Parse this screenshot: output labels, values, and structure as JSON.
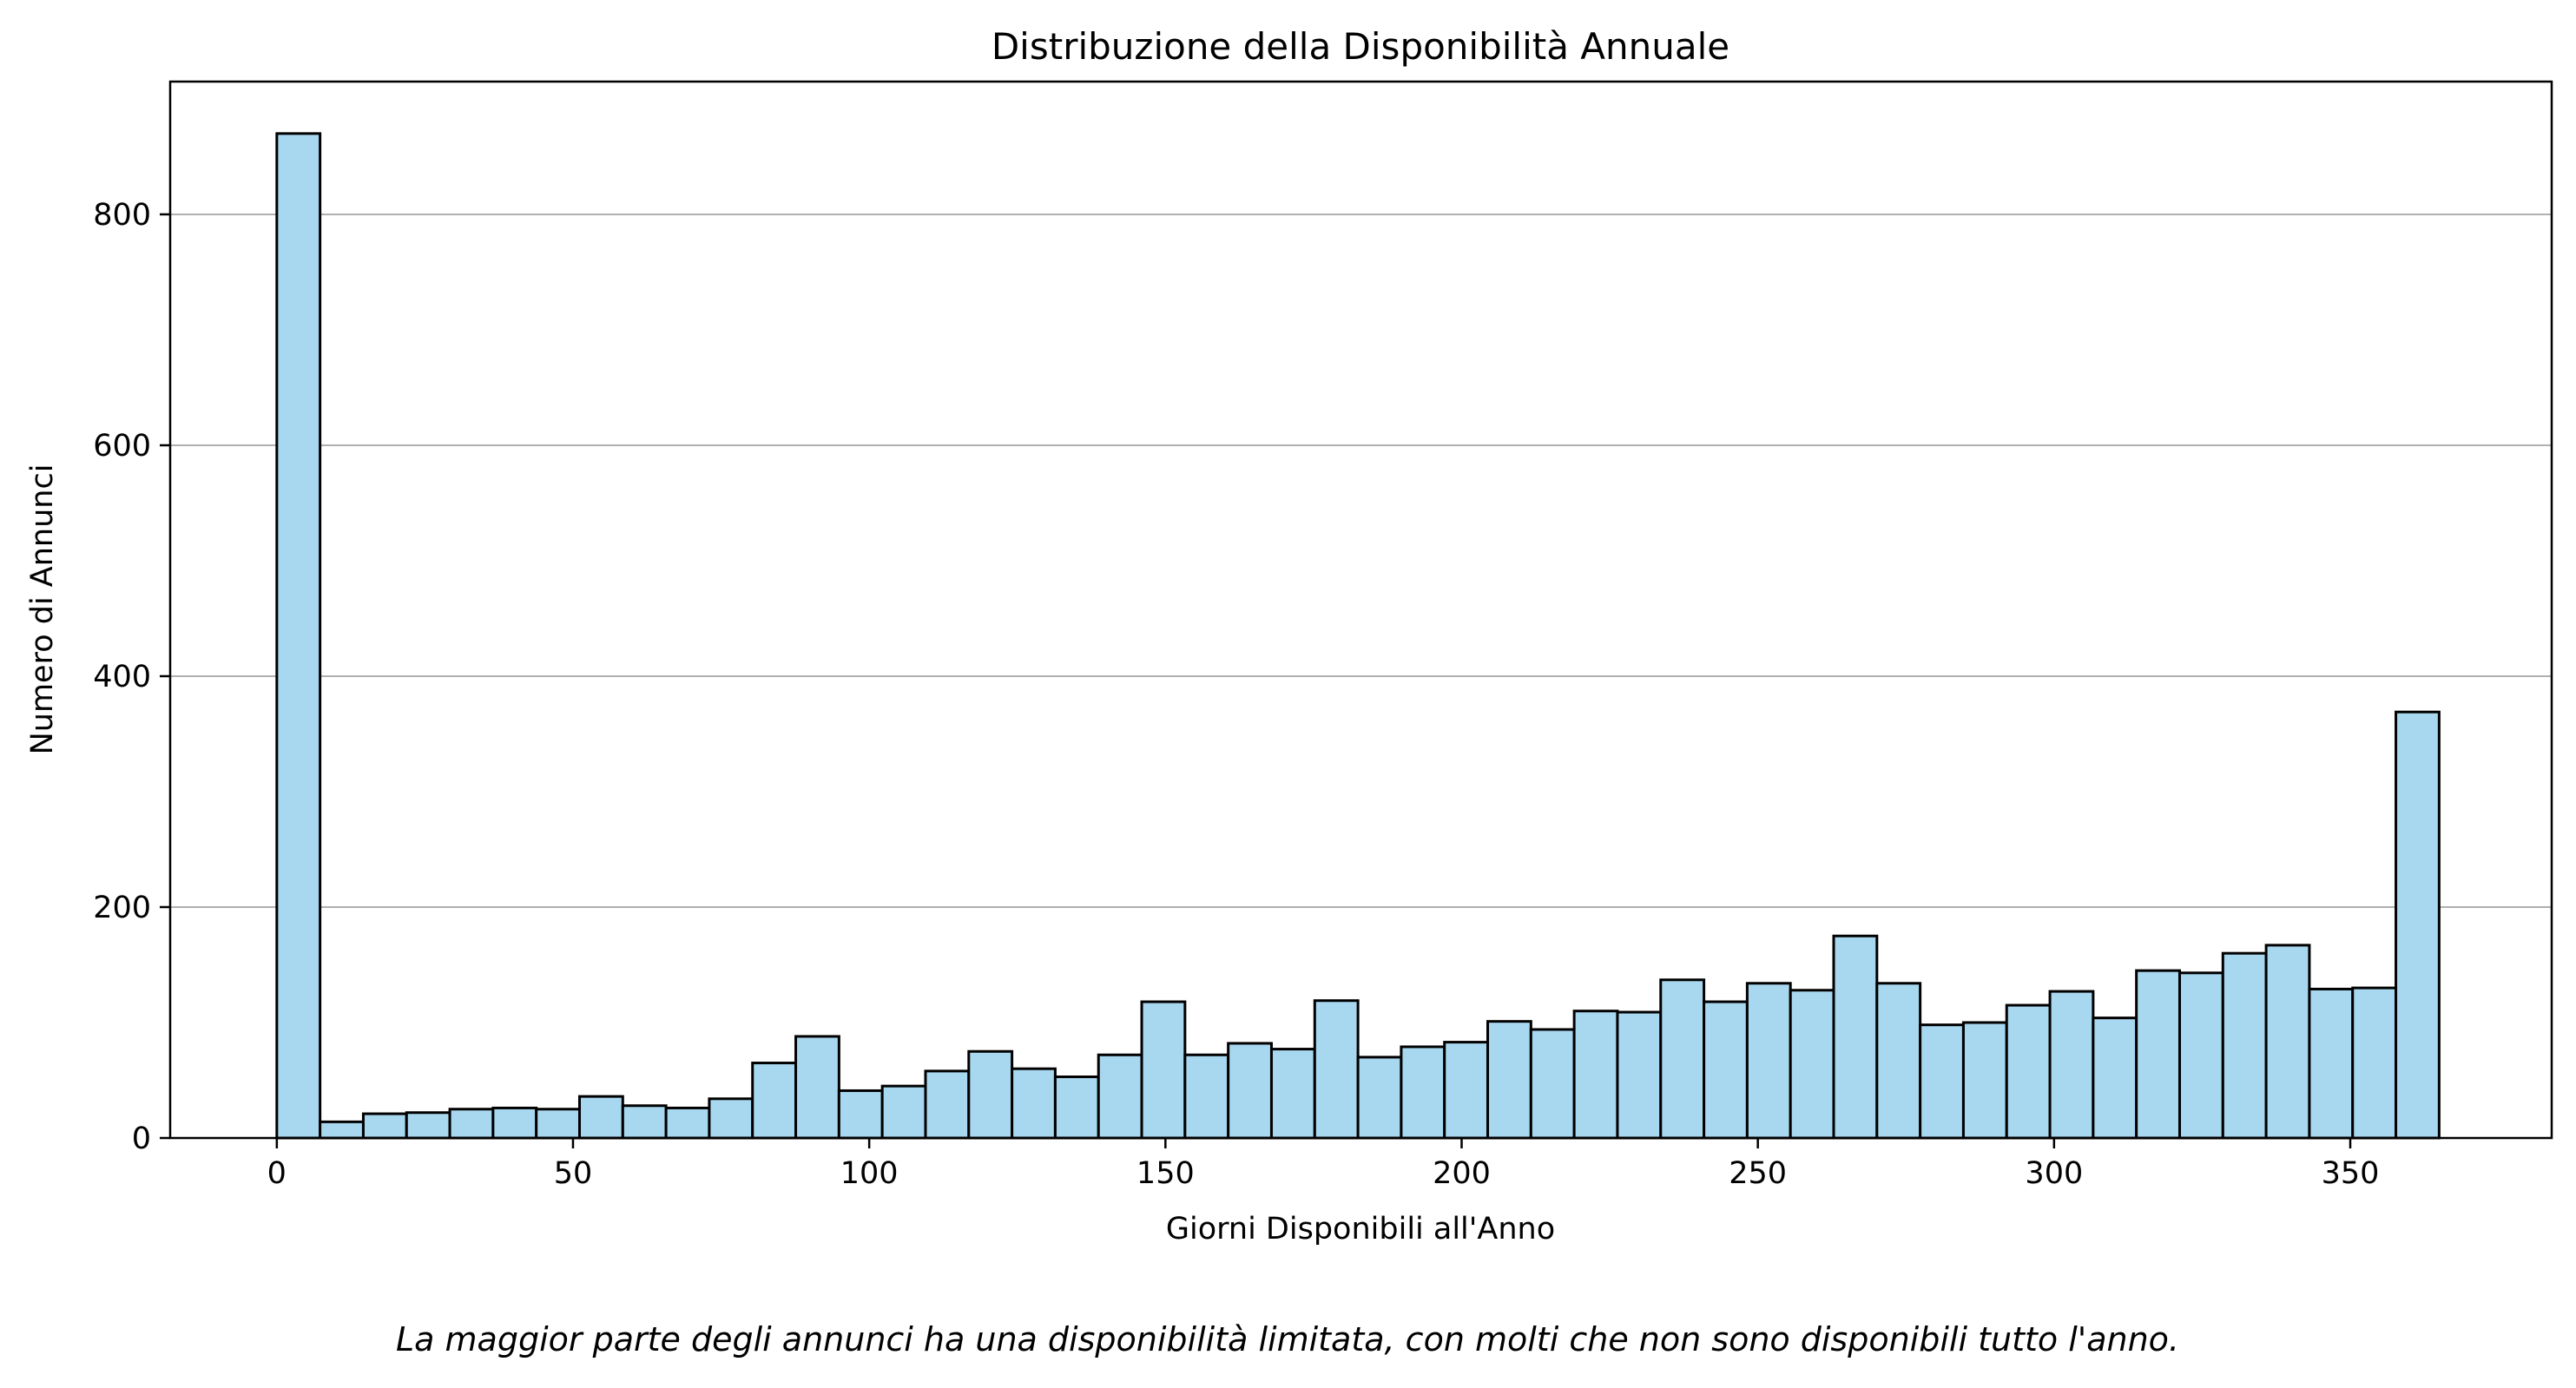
{
  "chart_data": {
    "type": "bar",
    "title": "Distribuzione della Disponibilità Annuale",
    "xlabel": "Giorni Disponibili all'Anno",
    "ylabel": "Numero di Annunci",
    "caption": "La maggior parte degli annunci ha una disponibilità limitata, con molti che non sono disponibili tutto l'anno.",
    "xlim": [
      -18,
      384
    ],
    "ylim": [
      0,
      915
    ],
    "x_ticks": [
      0,
      50,
      100,
      150,
      200,
      250,
      300,
      350
    ],
    "y_ticks": [
      0,
      200,
      400,
      600,
      800
    ],
    "grid": "y",
    "bar_color": "#a8d8f0",
    "edge_color": "#000000",
    "bins": {
      "start": 0,
      "end": 365,
      "count": 50
    },
    "values": [
      870,
      14,
      21,
      22,
      25,
      26,
      25,
      36,
      28,
      26,
      34,
      65,
      88,
      41,
      45,
      58,
      75,
      60,
      53,
      72,
      118,
      72,
      82,
      77,
      119,
      70,
      79,
      83,
      101,
      94,
      110,
      109,
      137,
      118,
      134,
      128,
      175,
      134,
      98,
      100,
      115,
      127,
      104,
      145,
      143,
      160,
      167,
      129,
      130,
      369
    ]
  }
}
